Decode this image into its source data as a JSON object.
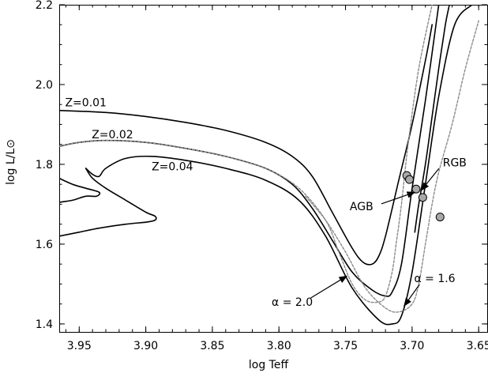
{
  "chart_data": {
    "type": "line",
    "xlabel": "log Teff",
    "ylabel": "log L/L⊙",
    "xlim": [
      3.965,
      3.643
    ],
    "ylim": [
      1.38,
      2.2
    ],
    "x_ticks": [
      "3.95",
      "3.90",
      "3.85",
      "3.80",
      "3.75",
      "3.70",
      "3.65"
    ],
    "x_tick_values": [
      3.95,
      3.9,
      3.85,
      3.8,
      3.75,
      3.7,
      3.65
    ],
    "y_ticks": [
      "1.4",
      "1.6",
      "1.8",
      "2.0",
      "2.2"
    ],
    "y_tick_values": [
      1.4,
      1.6,
      1.8,
      2.0,
      2.2
    ],
    "series": [
      {
        "name": "Z=0.01",
        "style": "solid",
        "x": [
          3.965,
          3.93,
          3.9,
          3.87,
          3.84,
          3.81,
          3.79,
          3.775,
          3.76,
          3.745,
          3.737,
          3.73,
          3.725,
          3.72,
          3.71,
          3.7,
          3.69,
          3.685
        ],
        "y": [
          1.935,
          1.93,
          1.92,
          1.905,
          1.885,
          1.855,
          1.82,
          1.77,
          1.68,
          1.59,
          1.555,
          1.55,
          1.57,
          1.62,
          1.76,
          1.9,
          2.06,
          2.15
        ]
      },
      {
        "name": "Z=0.02",
        "style": "solid",
        "x": [
          3.965,
          3.95,
          3.93,
          3.9,
          3.87,
          3.84,
          3.81,
          3.79,
          3.775,
          3.76,
          3.745,
          3.73,
          3.72,
          3.715,
          3.708,
          3.7,
          3.69,
          3.68
        ],
        "y": [
          1.845,
          1.855,
          1.86,
          1.855,
          1.84,
          1.82,
          1.79,
          1.75,
          1.69,
          1.61,
          1.53,
          1.485,
          1.47,
          1.48,
          1.55,
          1.74,
          1.96,
          2.2
        ]
      },
      {
        "name": "Z=0.02 (blue loop)",
        "style": "solid",
        "x": [
          3.965,
          3.955,
          3.945,
          3.937,
          3.935,
          3.945,
          3.955,
          3.965
        ],
        "y": [
          1.705,
          1.71,
          1.72,
          1.72,
          1.73,
          1.74,
          1.75,
          1.765
        ]
      },
      {
        "name": "Z=0.04",
        "style": "solid",
        "x": [
          3.945,
          3.94,
          3.935,
          3.93,
          3.915,
          3.895,
          3.87,
          3.84,
          3.81,
          3.785,
          3.765,
          3.745,
          3.725,
          3.715,
          3.708,
          3.7,
          3.69,
          3.68,
          3.668,
          3.655
        ],
        "y": [
          1.79,
          1.775,
          1.77,
          1.79,
          1.815,
          1.82,
          1.81,
          1.79,
          1.76,
          1.71,
          1.62,
          1.49,
          1.41,
          1.4,
          1.42,
          1.53,
          1.75,
          1.97,
          2.15,
          2.2
        ]
      },
      {
        "name": "Z=0.04 (blue loop)",
        "style": "solid",
        "x": [
          3.965,
          3.95,
          3.935,
          3.915,
          3.9,
          3.893,
          3.893,
          3.9,
          3.915,
          3.93,
          3.94,
          3.945
        ],
        "y": [
          1.62,
          1.63,
          1.64,
          1.65,
          1.655,
          1.66,
          1.67,
          1.68,
          1.71,
          1.74,
          1.765,
          1.79
        ]
      },
      {
        "name": "alpha=2.0",
        "style": "dotted",
        "x": [
          3.965,
          3.95,
          3.93,
          3.9,
          3.87,
          3.84,
          3.81,
          3.785,
          3.765,
          3.755,
          3.745,
          3.735,
          3.725,
          3.72,
          3.715,
          3.712,
          3.708,
          3.703,
          3.695,
          3.685
        ],
        "y": [
          1.845,
          1.855,
          1.86,
          1.855,
          1.84,
          1.82,
          1.79,
          1.74,
          1.66,
          1.58,
          1.5,
          1.46,
          1.455,
          1.47,
          1.53,
          1.6,
          1.7,
          1.85,
          2.04,
          2.2
        ]
      },
      {
        "name": "alpha=1.6",
        "style": "dotted",
        "x": [
          3.78,
          3.765,
          3.75,
          3.735,
          3.72,
          3.71,
          3.7,
          3.695,
          3.69,
          3.685,
          3.68,
          3.67,
          3.66,
          3.65
        ],
        "y": [
          1.72,
          1.66,
          1.58,
          1.49,
          1.44,
          1.43,
          1.45,
          1.5,
          1.6,
          1.7,
          1.78,
          1.9,
          2.04,
          2.16
        ]
      },
      {
        "name": "RGB branch",
        "style": "solid",
        "x": [
          3.698,
          3.695,
          3.69,
          3.685,
          3.68,
          3.675,
          3.672
        ],
        "y": [
          1.63,
          1.7,
          1.8,
          1.92,
          2.04,
          2.15,
          2.2
        ]
      }
    ],
    "points": [
      {
        "x": 3.704,
        "y": 1.772
      },
      {
        "x": 3.702,
        "y": 1.762
      },
      {
        "x": 3.697,
        "y": 1.738
      },
      {
        "x": 3.692,
        "y": 1.717
      },
      {
        "x": 3.679,
        "y": 1.668
      }
    ],
    "annotations": [
      {
        "text": "Z=0.01",
        "x": 3.945,
        "y": 1.945
      },
      {
        "text": "Z=0.02",
        "x": 3.925,
        "y": 1.865
      },
      {
        "text": "Z=0.04",
        "x": 3.88,
        "y": 1.785
      },
      {
        "text": "AGB",
        "x": 3.738,
        "y": 1.685,
        "arrow_to": [
          3.698,
          1.73
        ]
      },
      {
        "text": "RGB",
        "x": 3.668,
        "y": 1.795,
        "arrow_to": [
          3.693,
          1.735
        ]
      },
      {
        "text": "α = 2.0",
        "x": 3.79,
        "y": 1.445,
        "arrow_to": [
          3.749,
          1.52
        ]
      },
      {
        "text": "α = 1.6",
        "x": 3.683,
        "y": 1.505,
        "arrow_to": [
          3.706,
          1.445
        ]
      }
    ],
    "grid": false
  }
}
